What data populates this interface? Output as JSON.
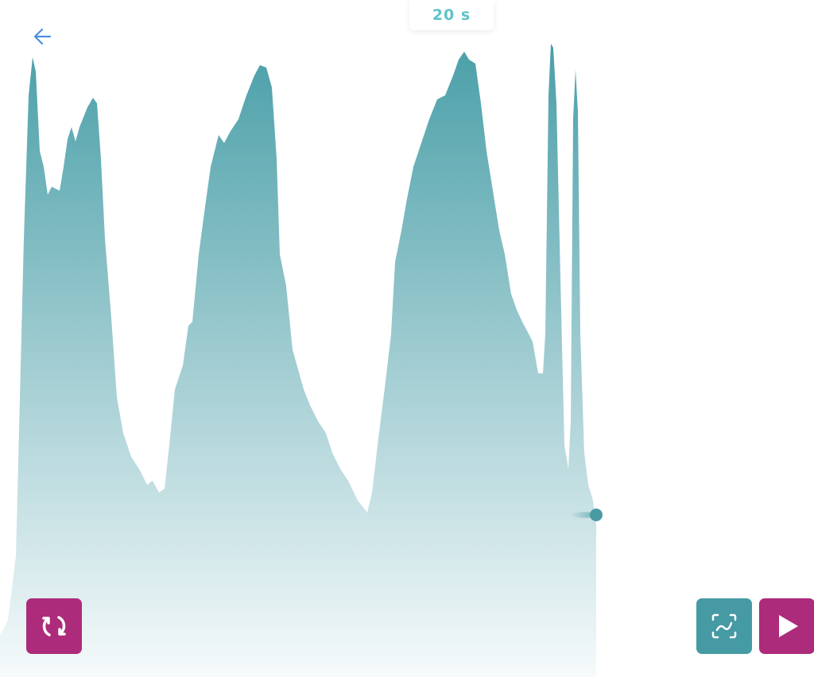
{
  "header": {
    "timer_label": "20 s"
  },
  "icons": {
    "back": "arrow-left-icon",
    "refresh": "refresh-icon",
    "chart": "chart-frame-icon",
    "play": "play-icon"
  },
  "colors": {
    "wave_top": "#4a9fa8",
    "wave_bottom": "#f6fafb",
    "accent_magenta": "#ad2b7b",
    "accent_teal": "#459aa3",
    "timer_text": "#5fc3c6",
    "back_arrow": "#4a90e2"
  }
}
